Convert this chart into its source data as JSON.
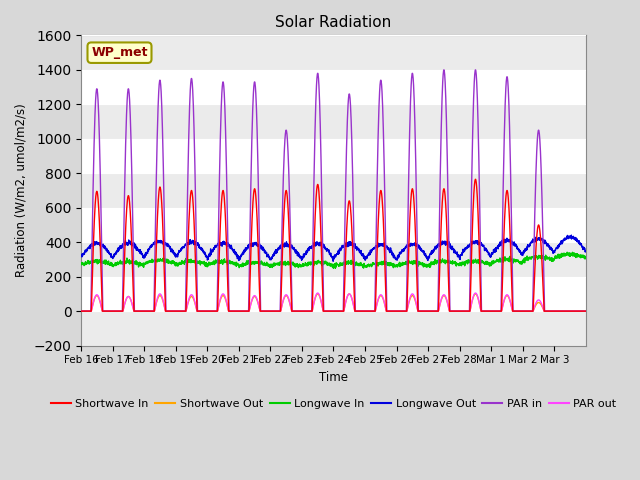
{
  "title": "Solar Radiation",
  "ylabel": "Radiation (W/m2, umol/m2/s)",
  "xlabel": "Time",
  "ylim": [
    -200,
    1600
  ],
  "yticks": [
    -200,
    0,
    200,
    400,
    600,
    800,
    1000,
    1200,
    1400,
    1600
  ],
  "fig_background": "#d8d8d8",
  "plot_background": "#ffffff",
  "grid_color": "#e0e0e0",
  "colors": {
    "shortwave_in": "#ff0000",
    "shortwave_out": "#ffa500",
    "longwave_in": "#00cc00",
    "longwave_out": "#0000dd",
    "par_in": "#9933cc",
    "par_out": "#ff44ff"
  },
  "legend": [
    {
      "label": "Shortwave In",
      "color": "#ff0000"
    },
    {
      "label": "Shortwave Out",
      "color": "#ffa500"
    },
    {
      "label": "Longwave In",
      "color": "#00cc00"
    },
    {
      "label": "Longwave Out",
      "color": "#0000dd"
    },
    {
      "label": "PAR in",
      "color": "#9933cc"
    },
    {
      "label": "PAR out",
      "color": "#ff44ff"
    }
  ],
  "annotation": "WP_met",
  "n_days": 16,
  "xtick_labels": [
    "Feb 16",
    "Feb 17",
    "Feb 18",
    "Feb 19",
    "Feb 20",
    "Feb 21",
    "Feb 22",
    "Feb 23",
    "Feb 24",
    "Feb 25",
    "Feb 26",
    "Feb 27",
    "Feb 28",
    "Mar 1",
    "Mar 2",
    "Mar 3"
  ],
  "line_width": 1.0
}
